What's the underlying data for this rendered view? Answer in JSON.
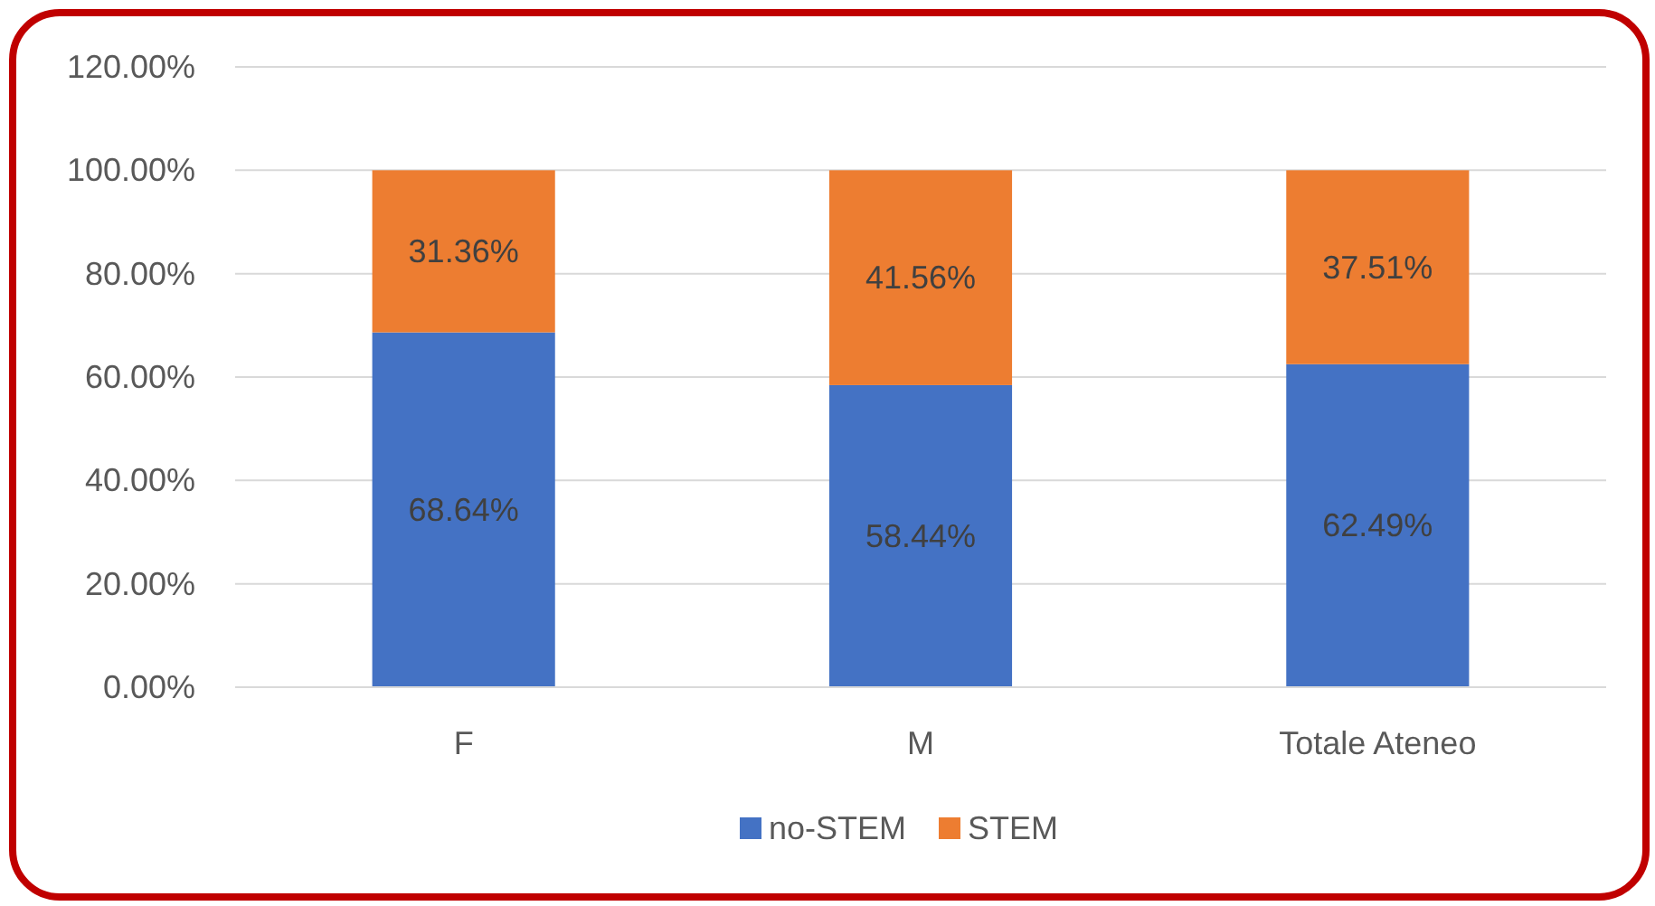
{
  "chart_data": {
    "type": "bar",
    "stacked": true,
    "categories": [
      "F",
      "M",
      "Totale Ateneo"
    ],
    "series": [
      {
        "name": "no-STEM",
        "color": "#4472c4",
        "values": [
          68.64,
          58.44,
          62.49
        ]
      },
      {
        "name": "STEM",
        "color": "#ed7d31",
        "values": [
          31.36,
          41.56,
          37.51
        ]
      }
    ],
    "ylim": [
      0,
      120
    ],
    "yticks": [
      {
        "value": 0,
        "label": "0.00%"
      },
      {
        "value": 20,
        "label": "20.00%"
      },
      {
        "value": 40,
        "label": "40.00%"
      },
      {
        "value": 60,
        "label": "60.00%"
      },
      {
        "value": 80,
        "label": "80.00%"
      },
      {
        "value": 100,
        "label": "100.00%"
      },
      {
        "value": 120,
        "label": "120.00%"
      }
    ],
    "value_labels": [
      [
        "68.64%",
        "58.44%",
        "62.49%"
      ],
      [
        "31.36%",
        "41.56%",
        "37.51%"
      ]
    ],
    "grid": "y",
    "legend": "bottom"
  }
}
